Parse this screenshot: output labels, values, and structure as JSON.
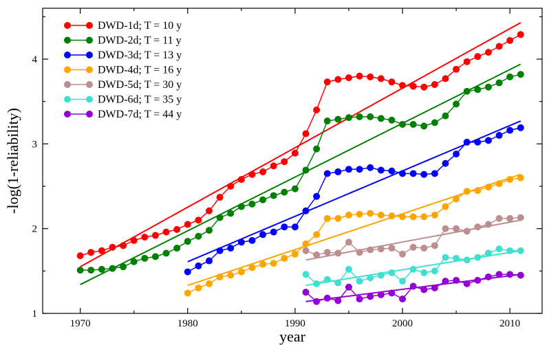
{
  "chart_data": {
    "type": "line",
    "title": "",
    "xlabel": "year",
    "ylabel": "-log(1-reliability)",
    "xlim": [
      1966.5,
      2013
    ],
    "ylim": [
      1,
      4.6
    ],
    "xticks": [
      1970,
      1980,
      1990,
      2000,
      2010
    ],
    "yticks": [
      1,
      2,
      3,
      4
    ],
    "grid": false,
    "legend_position": "top-left",
    "series": [
      {
        "name": "DWD-1d; T = 10 y",
        "color": "#ff0000",
        "x": [
          1970,
          1971,
          1972,
          1973,
          1974,
          1975,
          1976,
          1977,
          1978,
          1979,
          1980,
          1981,
          1982,
          1983,
          1984,
          1985,
          1986,
          1987,
          1988,
          1989,
          1990,
          1991,
          1992,
          1993,
          1994,
          1995,
          1996,
          1997,
          1998,
          1999,
          2000,
          2001,
          2002,
          2003,
          2004,
          2005,
          2006,
          2007,
          2008,
          2009,
          2010,
          2011
        ],
        "y": [
          1.68,
          1.72,
          1.74,
          1.78,
          1.8,
          1.86,
          1.9,
          1.92,
          1.96,
          1.99,
          2.05,
          2.1,
          2.21,
          2.37,
          2.5,
          2.58,
          2.64,
          2.67,
          2.74,
          2.79,
          2.89,
          3.12,
          3.4,
          3.73,
          3.76,
          3.78,
          3.8,
          3.79,
          3.77,
          3.73,
          3.69,
          3.68,
          3.67,
          3.7,
          3.77,
          3.88,
          3.97,
          4.03,
          4.08,
          4.15,
          4.22,
          4.29
        ],
        "trend": [
          [
            1970,
            1.55
          ],
          [
            2011,
            4.43
          ]
        ]
      },
      {
        "name": "DWD-2d; T = 11 y",
        "color": "#008000",
        "x": [
          1970,
          1971,
          1972,
          1973,
          1974,
          1975,
          1976,
          1977,
          1978,
          1979,
          1980,
          1981,
          1982,
          1983,
          1984,
          1985,
          1986,
          1987,
          1988,
          1989,
          1990,
          1991,
          1992,
          1993,
          1994,
          1995,
          1996,
          1997,
          1998,
          1999,
          2000,
          2001,
          2002,
          2003,
          2004,
          2005,
          2006,
          2007,
          2008,
          2009,
          2010,
          2011
        ],
        "y": [
          1.51,
          1.51,
          1.52,
          1.53,
          1.55,
          1.61,
          1.65,
          1.67,
          1.71,
          1.77,
          1.85,
          1.91,
          1.98,
          2.13,
          2.18,
          2.26,
          2.29,
          2.34,
          2.39,
          2.43,
          2.47,
          2.69,
          2.94,
          3.27,
          3.29,
          3.31,
          3.32,
          3.32,
          3.3,
          3.28,
          3.23,
          3.23,
          3.21,
          3.25,
          3.33,
          3.47,
          3.62,
          3.64,
          3.67,
          3.72,
          3.79,
          3.82
        ],
        "trend": [
          [
            1970,
            1.34
          ],
          [
            2011,
            3.94
          ]
        ]
      },
      {
        "name": "DWD-3d; T = 13 y",
        "color": "#0000ff",
        "x": [
          1980,
          1981,
          1982,
          1983,
          1984,
          1985,
          1986,
          1987,
          1988,
          1989,
          1990,
          1991,
          1992,
          1993,
          1994,
          1995,
          1996,
          1997,
          1998,
          1999,
          2000,
          2001,
          2002,
          2003,
          2004,
          2005,
          2006,
          2007,
          2008,
          2009,
          2010,
          2011
        ],
        "y": [
          1.49,
          1.56,
          1.62,
          1.74,
          1.77,
          1.84,
          1.86,
          1.93,
          1.96,
          2.02,
          2.02,
          2.21,
          2.38,
          2.65,
          2.67,
          2.7,
          2.7,
          2.72,
          2.69,
          2.68,
          2.65,
          2.65,
          2.64,
          2.65,
          2.77,
          2.88,
          3.02,
          3.02,
          3.04,
          3.1,
          3.16,
          3.19
        ],
        "trend": [
          [
            1980,
            1.61
          ],
          [
            2011,
            3.27
          ]
        ]
      },
      {
        "name": "DWD-4d; T = 16 y",
        "color": "#ffa500",
        "x": [
          1980,
          1981,
          1982,
          1983,
          1984,
          1985,
          1986,
          1987,
          1988,
          1989,
          1990,
          1991,
          1992,
          1993,
          1994,
          1995,
          1996,
          1997,
          1998,
          1999,
          2000,
          2001,
          2002,
          2003,
          2004,
          2005,
          2006,
          2007,
          2008,
          2009,
          2010,
          2011
        ],
        "y": [
          1.24,
          1.3,
          1.35,
          1.43,
          1.45,
          1.49,
          1.54,
          1.58,
          1.59,
          1.65,
          1.7,
          1.82,
          1.93,
          2.12,
          2.12,
          2.16,
          2.17,
          2.18,
          2.16,
          2.15,
          2.14,
          2.14,
          2.14,
          2.16,
          2.26,
          2.35,
          2.44,
          2.45,
          2.49,
          2.53,
          2.58,
          2.6
        ],
        "trend": [
          [
            1980,
            1.33
          ],
          [
            2011,
            2.64
          ]
        ]
      },
      {
        "name": "DWD-5d; T = 30 y",
        "color": "#bc8f8f",
        "x": [
          1991,
          1992,
          1993,
          1994,
          1995,
          1996,
          1997,
          1998,
          1999,
          2000,
          2001,
          2002,
          2003,
          2004,
          2005,
          2006,
          2007,
          2008,
          2009,
          2010,
          2011
        ],
        "y": [
          1.74,
          1.69,
          1.72,
          1.71,
          1.84,
          1.72,
          1.75,
          1.76,
          1.77,
          1.7,
          1.78,
          1.77,
          1.8,
          2.0,
          2.0,
          1.97,
          2.02,
          2.05,
          2.12,
          2.12,
          2.13
        ],
        "trend": [
          [
            1991,
            1.63
          ],
          [
            2011,
            2.1
          ]
        ]
      },
      {
        "name": "DWD-6d; T = 35 y",
        "color": "#40e0d0",
        "x": [
          1991,
          1992,
          1993,
          1994,
          1995,
          1996,
          1997,
          1998,
          1999,
          2000,
          2001,
          2002,
          2003,
          2004,
          2005,
          2006,
          2007,
          2008,
          2009,
          2010,
          2011
        ],
        "y": [
          1.46,
          1.35,
          1.4,
          1.36,
          1.52,
          1.38,
          1.42,
          1.45,
          1.48,
          1.38,
          1.52,
          1.48,
          1.5,
          1.66,
          1.65,
          1.63,
          1.66,
          1.71,
          1.76,
          1.74,
          1.74
        ],
        "trend": [
          [
            1991,
            1.33
          ],
          [
            2011,
            1.74
          ]
        ]
      },
      {
        "name": "DWD-7d; T = 44 y",
        "color": "#9400d3",
        "x": [
          1991,
          1992,
          1993,
          1994,
          1995,
          1996,
          1997,
          1998,
          1999,
          2000,
          2001,
          2002,
          2003,
          2004,
          2005,
          2006,
          2007,
          2008,
          2009,
          2010,
          2011
        ],
        "y": [
          1.25,
          1.14,
          1.18,
          1.15,
          1.31,
          1.17,
          1.2,
          1.22,
          1.24,
          1.17,
          1.32,
          1.28,
          1.3,
          1.38,
          1.39,
          1.35,
          1.39,
          1.43,
          1.46,
          1.46,
          1.45
        ],
        "trend": [
          [
            1991,
            1.14
          ],
          [
            2011,
            1.46
          ]
        ]
      }
    ]
  }
}
